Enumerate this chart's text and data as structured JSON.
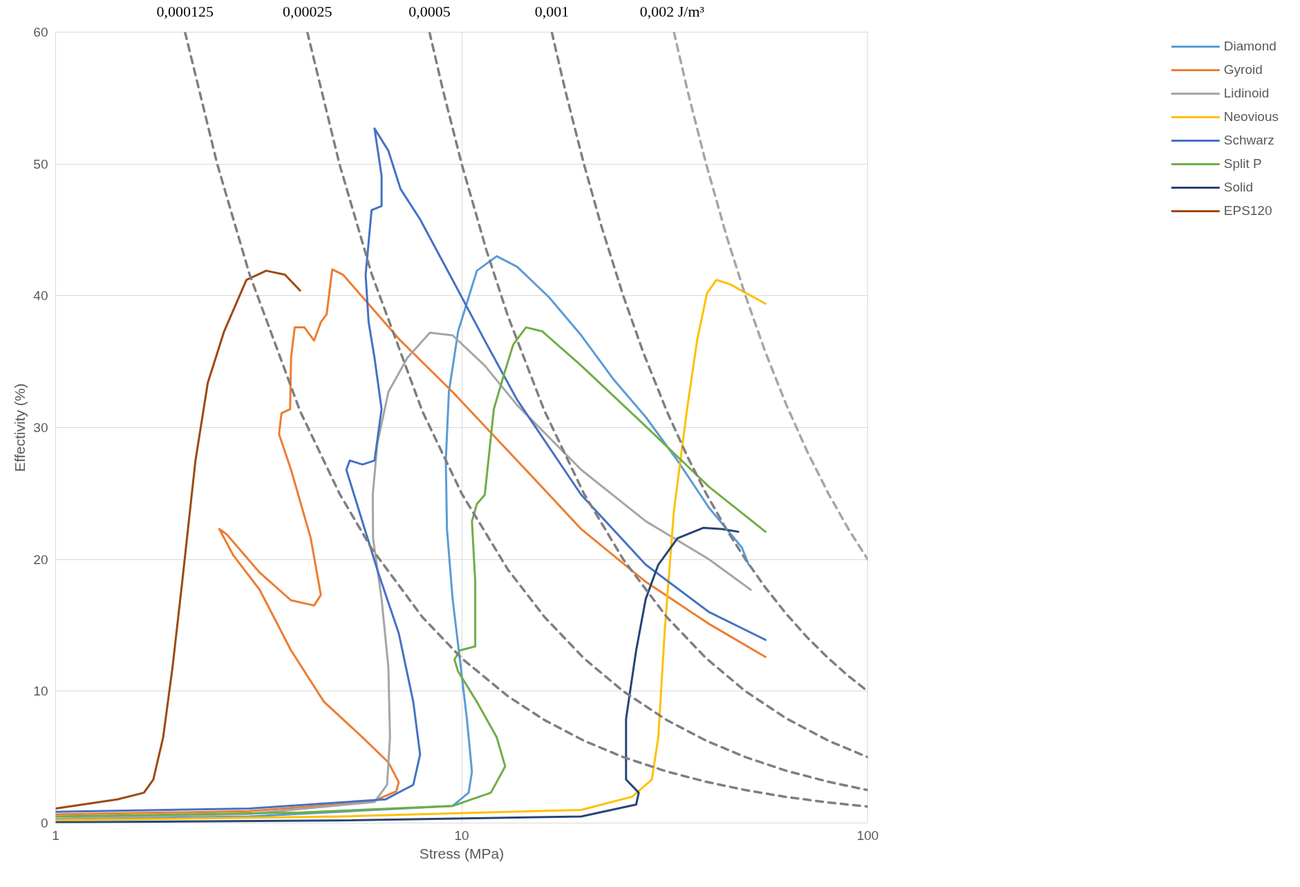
{
  "chart_data": {
    "type": "line",
    "xlabel": "Stress (MPa)",
    "ylabel": "Effectivity (%)",
    "log": "x",
    "xlim": [
      1,
      100
    ],
    "xticks": [
      1,
      10,
      100
    ],
    "ylim": [
      0,
      60
    ],
    "yticks": [
      0,
      10,
      20,
      30,
      40,
      50,
      60
    ],
    "grid": true,
    "legend": "right",
    "line_style": "solid",
    "marker": "none",
    "annotations": [
      {
        "text": "0,000125",
        "x": 2.083,
        "y": 60
      },
      {
        "text": "0,00025",
        "x": 4.167,
        "y": 60
      },
      {
        "text": "0,0005",
        "x": 8.333,
        "y": 60
      },
      {
        "text": "0,001",
        "x": 16.67,
        "y": 60
      },
      {
        "text": "0,002  J/m³",
        "x": 33.33,
        "y": 60
      }
    ],
    "series": [
      {
        "name": "Diamond",
        "color": "#5b9bd5",
        "x": [
          1,
          3,
          9.5,
          10.4,
          10.6,
          10.3,
          9.9,
          9.5,
          9.2,
          9.14,
          9.3,
          9.8,
          10.9,
          12.2,
          13.7,
          16.4,
          19.7,
          23.6,
          28.4,
          34.0,
          40.7,
          49,
          50.9
        ],
        "values": [
          0.3,
          0.5,
          1.3,
          2.3,
          3.9,
          7.9,
          12.4,
          17.0,
          22.3,
          27.5,
          32.7,
          37.3,
          41.9,
          43.0,
          42.2,
          39.9,
          37.0,
          33.7,
          30.8,
          27.5,
          23.9,
          20.9,
          19.6
        ]
      },
      {
        "name": "Gyroid",
        "color": "#ed7d31",
        "x": [
          1,
          3,
          6.0,
          6.9,
          7.0,
          6.6,
          5.7,
          4.58,
          3.8,
          3.18,
          2.74,
          2.53,
          2.64,
          3.18,
          3.8,
          4.33,
          4.5,
          4.25,
          3.8,
          3.55,
          3.6,
          3.78,
          3.8,
          3.88,
          4.1,
          4.33,
          4.5,
          4.65,
          4.8,
          5.1,
          5.7,
          7.07,
          9.5,
          13.7,
          19.7,
          28.4,
          40.7,
          56
        ],
        "values": [
          0.65,
          0.9,
          1.6,
          2.4,
          3.1,
          4.6,
          6.5,
          9.2,
          13.1,
          17.7,
          20.3,
          22.3,
          21.9,
          19.0,
          16.9,
          16.5,
          17.3,
          21.6,
          26.8,
          29.5,
          31.1,
          31.4,
          35.3,
          37.6,
          37.6,
          36.6,
          38.0,
          38.6,
          42.0,
          41.6,
          39.9,
          36.6,
          32.7,
          27.5,
          22.3,
          18.3,
          15.1,
          12.6
        ]
      },
      {
        "name": "Lidinoid",
        "color": "#a5a5a5",
        "x": [
          1,
          3,
          6.1,
          6.55,
          6.66,
          6.6,
          6.35,
          6.05,
          6.04,
          6.2,
          6.6,
          7.35,
          8.35,
          9.5,
          11.4,
          13.7,
          19.7,
          28.4,
          40.7,
          51.5
        ],
        "values": [
          0.33,
          0.7,
          1.6,
          2.9,
          6.5,
          11.8,
          17.0,
          21.6,
          24.9,
          28.8,
          32.7,
          35.3,
          37.2,
          37.0,
          34.7,
          31.7,
          26.8,
          22.9,
          20.0,
          17.7
        ]
      },
      {
        "name": "Neovious",
        "color": "#ffc000",
        "x": [
          1,
          5,
          19.7,
          26.3,
          29.4,
          30.5,
          31.6,
          33.3,
          35.9,
          38.0,
          40.2,
          42.4,
          45.6,
          50.9,
          56
        ],
        "values": [
          0.2,
          0.5,
          1.0,
          2.0,
          3.3,
          6.5,
          14.4,
          23.6,
          31.4,
          36.6,
          40.2,
          41.2,
          40.9,
          40.1,
          39.4
        ]
      },
      {
        "name": "Schwarz",
        "color": "#4472c4",
        "x": [
          1,
          3,
          6.5,
          7.6,
          7.9,
          7.6,
          7.0,
          6.23,
          5.6,
          5.2,
          5.3,
          5.7,
          6.1,
          6.35,
          6.1,
          5.9,
          5.8,
          6.0,
          6.35,
          6.35,
          6.1,
          6.6,
          7.07,
          7.9,
          9.5,
          11.4,
          13.7,
          19.7,
          28.4,
          40.7,
          56
        ],
        "values": [
          0.85,
          1.1,
          1.8,
          2.9,
          5.2,
          9.2,
          14.4,
          19.0,
          23.6,
          26.8,
          27.5,
          27.2,
          27.5,
          31.4,
          35.3,
          38.0,
          41.6,
          46.5,
          46.8,
          49.1,
          52.7,
          51.0,
          48.1,
          45.8,
          41.2,
          36.6,
          32.1,
          24.9,
          19.6,
          16.0,
          13.9
        ]
      },
      {
        "name": "Split P",
        "color": "#70ad47",
        "x": [
          1,
          4,
          9.5,
          11.8,
          12.8,
          12.2,
          10.9,
          9.8,
          9.6,
          9.9,
          10.8,
          10.8,
          10.6,
          10.9,
          11.4,
          12.0,
          12.7,
          13.4,
          14.4,
          15.8,
          19.7,
          28.4,
          40.7,
          56
        ],
        "values": [
          0.5,
          0.8,
          1.3,
          2.3,
          4.3,
          6.5,
          9.2,
          11.5,
          12.4,
          13.1,
          13.4,
          18.3,
          22.9,
          24.2,
          24.9,
          31.4,
          34.0,
          36.3,
          37.6,
          37.3,
          34.7,
          30.1,
          25.5,
          22.1
        ]
      },
      {
        "name": "Solid",
        "color": "#264478",
        "x": [
          1,
          5,
          19.7,
          26.9,
          27.3,
          25.4,
          25.4,
          26.9,
          28.4,
          30.5,
          34.0,
          39.4,
          43.8,
          48.0
        ],
        "values": [
          0.05,
          0.2,
          0.5,
          1.4,
          2.3,
          3.3,
          7.9,
          13.1,
          17.0,
          19.6,
          21.6,
          22.4,
          22.3,
          22.1
        ]
      },
      {
        "name": "EPS120",
        "color": "#9e480e",
        "x": [
          1,
          1.42,
          1.65,
          1.74,
          1.84,
          1.94,
          2.05,
          2.21,
          2.37,
          2.6,
          2.95,
          3.3,
          3.67,
          4.0
        ],
        "values": [
          1.1,
          1.8,
          2.3,
          3.3,
          6.5,
          11.8,
          18.3,
          27.5,
          33.4,
          37.3,
          41.2,
          41.9,
          41.6,
          40.4
        ]
      },
      {
        "color": "#7f7f7f",
        "line_style": "dashed",
        "x": [
          2.083,
          2.5,
          3,
          4,
          5,
          6,
          8,
          10,
          13,
          16,
          20,
          25,
          32,
          40,
          50,
          63,
          80,
          100
        ],
        "values": [
          60,
          50,
          41.67,
          31.25,
          25,
          20.83,
          15.63,
          12.5,
          9.62,
          7.81,
          6.25,
          5,
          3.91,
          3.13,
          2.5,
          1.98,
          1.56,
          1.25
        ]
      },
      {
        "color": "#7f7f7f",
        "line_style": "dashed",
        "x": [
          4.167,
          5,
          6,
          8,
          10,
          13,
          16,
          20,
          25,
          32,
          40,
          50,
          63,
          80,
          100
        ],
        "values": [
          60,
          50,
          41.67,
          31.25,
          25,
          19.23,
          15.63,
          12.5,
          10,
          7.81,
          6.25,
          5,
          3.97,
          3.13,
          2.5
        ]
      },
      {
        "color": "#7f7f7f",
        "line_style": "dashed",
        "x": [
          8.333,
          9,
          10,
          11.5,
          13,
          16,
          20,
          25,
          32,
          40,
          50,
          63,
          80,
          100
        ],
        "values": [
          60,
          55.56,
          50,
          43.48,
          38.46,
          31.25,
          25,
          20,
          15.63,
          12.5,
          10,
          7.94,
          6.25,
          5
        ]
      },
      {
        "color": "#7f7f7f",
        "line_style": "dashed",
        "x": [
          16.67,
          18,
          20,
          22,
          25,
          28,
          32,
          36,
          40,
          45,
          50,
          56,
          63,
          71,
          80,
          90,
          100
        ],
        "values": [
          60,
          55.56,
          50,
          45.45,
          40,
          35.71,
          31.25,
          27.78,
          25,
          22.22,
          20,
          17.86,
          15.87,
          14.08,
          12.5,
          11.11,
          10
        ]
      },
      {
        "color": "#a6a6a6",
        "line_style": "dashed",
        "x": [
          33.33,
          36,
          40,
          45,
          50,
          56,
          63,
          71,
          80,
          90,
          100
        ],
        "values": [
          60,
          55.56,
          50,
          44.44,
          40,
          35.71,
          31.75,
          28.17,
          25,
          22.22,
          20
        ]
      }
    ]
  }
}
